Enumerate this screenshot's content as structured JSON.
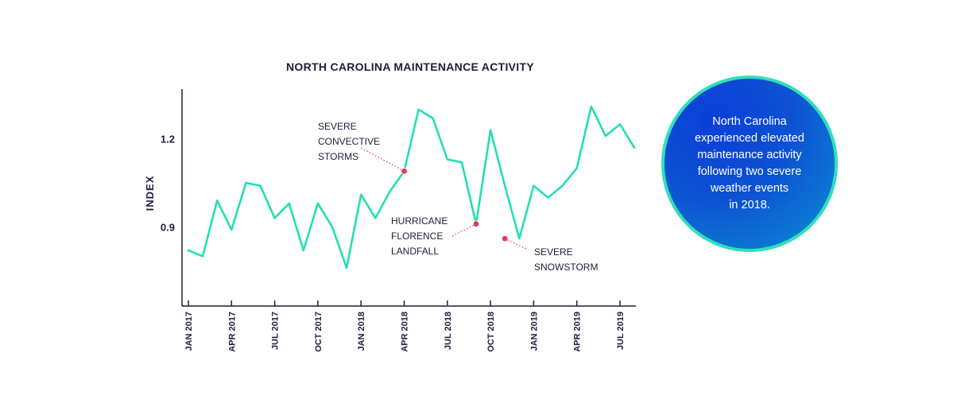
{
  "chart_data": {
    "type": "line",
    "title": "NORTH CAROLINA MAINTENANCE ACTIVITY",
    "xlabel": "",
    "ylabel": "INDEX",
    "ylim": [
      0.63,
      1.37
    ],
    "yticks": [
      0.9,
      1.2
    ],
    "ytick_labels": [
      "0.9",
      "1.2"
    ],
    "grid": false,
    "x": [
      "2017-01",
      "2017-02",
      "2017-03",
      "2017-04",
      "2017-05",
      "2017-06",
      "2017-07",
      "2017-08",
      "2017-09",
      "2017-10",
      "2017-11",
      "2017-12",
      "2018-01",
      "2018-02",
      "2018-03",
      "2018-04",
      "2018-05",
      "2018-06",
      "2018-07",
      "2018-08",
      "2018-09",
      "2018-10",
      "2018-11",
      "2018-12",
      "2019-01",
      "2019-02",
      "2019-03",
      "2019-04",
      "2019-05",
      "2019-06",
      "2019-07",
      "2019-08"
    ],
    "xticks": [
      "2017-01",
      "2017-04",
      "2017-07",
      "2017-10",
      "2018-01",
      "2018-04",
      "2018-07",
      "2018-10",
      "2019-01",
      "2019-04",
      "2019-07"
    ],
    "xtick_labels": [
      "JAN 2017",
      "APR 2017",
      "JUL 2017",
      "OCT 2017",
      "JAN 2018",
      "APR 2018",
      "JUL 2018",
      "OCT 2018",
      "JAN 2019",
      "APR 2019",
      "JUL 2019"
    ],
    "series": [
      {
        "color": "#22dfb4",
        "values": [
          0.82,
          0.8,
          0.99,
          0.89,
          1.05,
          1.04,
          0.93,
          0.98,
          0.82,
          0.98,
          0.9,
          0.76,
          1.01,
          0.93,
          1.02,
          1.09,
          1.3,
          1.27,
          1.13,
          1.12,
          0.91,
          1.23,
          1.04,
          0.86,
          1.04,
          1.0,
          1.04,
          1.1,
          1.31,
          1.21,
          1.25,
          1.17
        ]
      }
    ],
    "annotations": [
      {
        "x": "2018-04",
        "y": 1.09,
        "lines": [
          "SEVERE",
          "CONVECTIVE",
          "STORMS"
        ],
        "color": "#e03c53"
      },
      {
        "x": "2018-09",
        "y": 0.91,
        "lines": [
          "HURRICANE",
          "FLORENCE",
          "LANDFALL"
        ],
        "color": "#e03c53"
      },
      {
        "x": "2018-11",
        "y": 0.86,
        "lines": [
          "SEVERE",
          "SNOWSTORM"
        ],
        "color": "#e03c53"
      }
    ]
  },
  "callout": {
    "lines": [
      "North Carolina",
      "experienced elevated",
      "maintenance activity",
      "following two severe",
      "weather events",
      "in 2018."
    ],
    "border_color": "#2fe0b8"
  }
}
